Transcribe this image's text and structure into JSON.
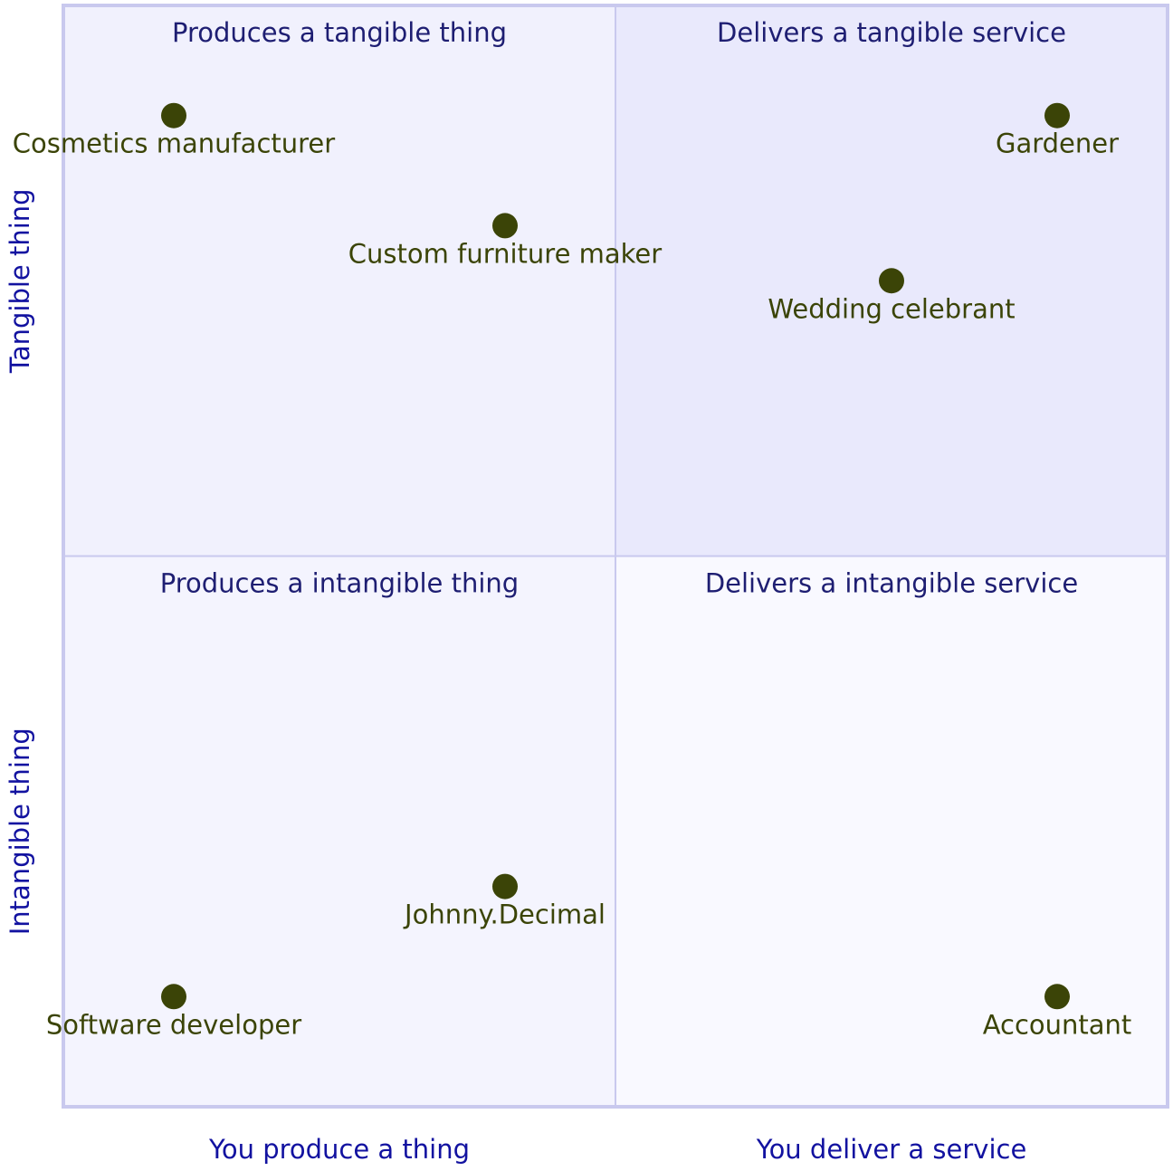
{
  "chart_data": {
    "type": "scatter",
    "chart_kind": "quadrant",
    "x_axis": {
      "low_label": "You produce a thing",
      "high_label": "You deliver a service",
      "range": [
        0,
        1
      ]
    },
    "y_axis": {
      "low_label": "Intangible thing",
      "high_label": "Tangible thing",
      "range": [
        0,
        1
      ]
    },
    "quadrants": {
      "top_left": "Produces a tangible thing",
      "top_right": "Delivers a tangible service",
      "bottom_left": "Produces a intangible thing",
      "bottom_right": "Delivers a intangible service"
    },
    "points": [
      {
        "label": "Cosmetics manufacturer",
        "x": 0.1,
        "y": 0.9
      },
      {
        "label": "Gardener",
        "x": 0.9,
        "y": 0.9
      },
      {
        "label": "Custom furniture maker",
        "x": 0.4,
        "y": 0.8
      },
      {
        "label": "Wedding celebrant",
        "x": 0.75,
        "y": 0.75
      },
      {
        "label": "Johnny.Decimal",
        "x": 0.4,
        "y": 0.2
      },
      {
        "label": "Software developer",
        "x": 0.1,
        "y": 0.1
      },
      {
        "label": "Accountant",
        "x": 0.9,
        "y": 0.1
      }
    ],
    "grid": false,
    "colors": {
      "quadrant_top_right": "#e9e9fc",
      "quadrant_top_left": "#f1f1fd",
      "quadrant_bottom_left": "#f4f4fe",
      "quadrant_bottom_right": "#f9f9ff",
      "border": "#c9c9ee",
      "quadrant_title_text": "#1e1e72",
      "axis_text": "#1212a0",
      "point_fill": "#3b4407",
      "point_label_text": "#3b4407"
    }
  }
}
